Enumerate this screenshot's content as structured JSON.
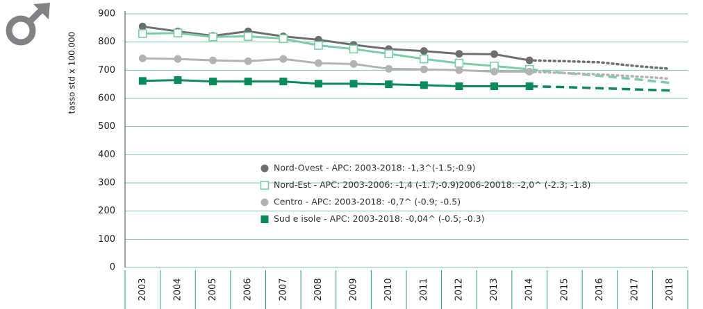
{
  "chart_data": {
    "type": "line",
    "y_label": "tasso std x 100.000",
    "categories": [
      "2003",
      "2004",
      "2005",
      "2006",
      "2007",
      "2008",
      "2009",
      "2010",
      "2011",
      "2012",
      "2013",
      "2014",
      "2015",
      "2016",
      "2017",
      "2018"
    ],
    "ylim": [
      0,
      900
    ],
    "yticks": [
      0,
      100,
      200,
      300,
      400,
      500,
      600,
      700,
      800,
      900
    ],
    "grid": true,
    "series": [
      {
        "name": "Nord-Ovest - APC: 2003-2018: -1,3^(-1.5;-0.9)",
        "color": "#6d6e71",
        "marker": "circle",
        "values": [
          855,
          838,
          822,
          838,
          820,
          808,
          790,
          775,
          768,
          758,
          757,
          735,
          null,
          null,
          null,
          null
        ],
        "projection": [
          null,
          null,
          null,
          null,
          null,
          null,
          null,
          null,
          null,
          null,
          null,
          735,
          732,
          728,
          715,
          705
        ]
      },
      {
        "name": "Nord-Est - APC: 2003-2006: -1,4 (-1.7;-0.9)2006-20018: -2,0^ (-2.3; -1.8)",
        "color": "#7ccca6",
        "marker": "hollow-square",
        "values": [
          830,
          832,
          818,
          820,
          812,
          788,
          775,
          758,
          740,
          725,
          715,
          703,
          null,
          null,
          null,
          null
        ],
        "projection": [
          null,
          null,
          null,
          null,
          null,
          null,
          null,
          null,
          null,
          null,
          null,
          703,
          690,
          680,
          668,
          655
        ]
      },
      {
        "name": "Centro - APC: 2003-2018:  -0,7^ (-0.9; -0.5)",
        "color": "#b3b3b3",
        "marker": "circle",
        "values": [
          742,
          740,
          735,
          732,
          740,
          725,
          722,
          705,
          703,
          700,
          695,
          695,
          null,
          null,
          null,
          null
        ],
        "projection": [
          null,
          null,
          null,
          null,
          null,
          null,
          null,
          null,
          null,
          null,
          null,
          695,
          690,
          685,
          678,
          670
        ]
      },
      {
        "name": "Sud e isole - APC: 2003-2018: -0,04^ (-0.5; -0.3)",
        "color": "#0b8a5a",
        "marker": "square",
        "values": [
          662,
          665,
          660,
          660,
          660,
          652,
          652,
          650,
          647,
          643,
          643,
          643,
          null,
          null,
          null,
          null
        ],
        "projection": [
          null,
          null,
          null,
          null,
          null,
          null,
          null,
          null,
          null,
          null,
          null,
          643,
          640,
          636,
          632,
          628
        ]
      }
    ]
  }
}
